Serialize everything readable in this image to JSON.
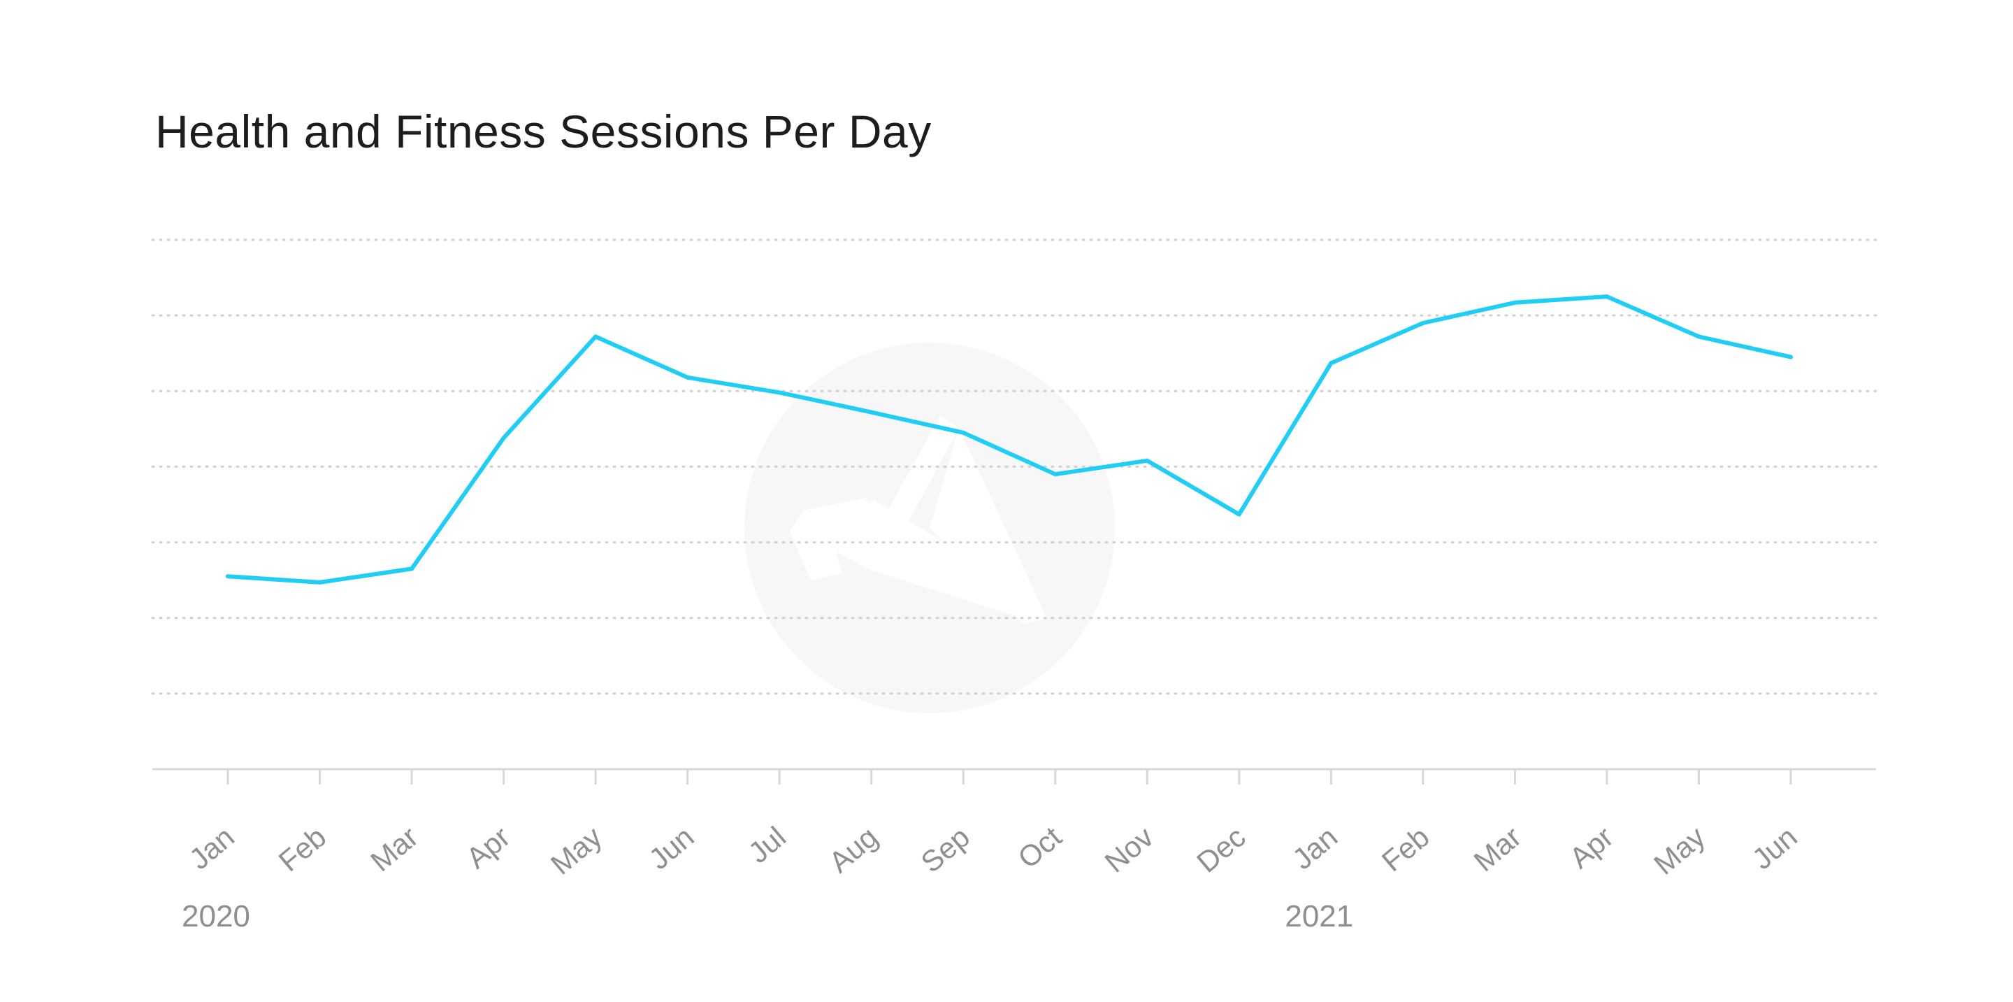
{
  "chart_data": {
    "type": "line",
    "title": "Health and Fitness Sessions Per Day",
    "xlabel": "",
    "ylabel": "",
    "categories": [
      "Jan",
      "Feb",
      "Mar",
      "Apr",
      "May",
      "Jun",
      "Jul",
      "Aug",
      "Sep",
      "Oct",
      "Nov",
      "Dec",
      "Jan",
      "Feb",
      "Mar",
      "Apr",
      "May",
      "Jun"
    ],
    "year_labels": [
      {
        "label": "2020",
        "category_index": 0
      },
      {
        "label": "2021",
        "category_index": 12
      }
    ],
    "series": [
      {
        "values": [
          2.55,
          2.47,
          2.65,
          4.38,
          5.72,
          5.18,
          4.98,
          4.72,
          4.45,
          3.9,
          4.08,
          3.37,
          5.37,
          5.9,
          6.17,
          6.25,
          5.72,
          5.45
        ],
        "color": "#1fcdf5"
      }
    ],
    "ylim": [
      0,
      7
    ],
    "y_gridlines": 7,
    "grid": true,
    "y_tick_labels_shown": false,
    "legend": "none",
    "watermark_icon": "app-logo-icon"
  }
}
